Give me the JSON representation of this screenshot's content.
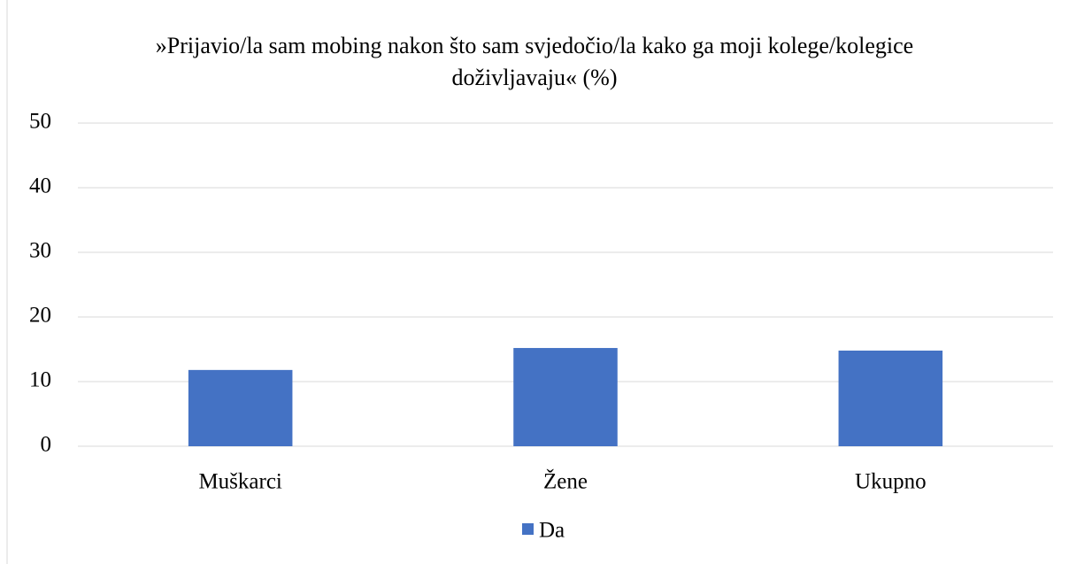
{
  "chart_data": {
    "type": "bar",
    "title": "»Prijavio/la sam mobing nakon što sam svjedočio/la kako ga moji kolege/kolegice doživljavaju« (%)",
    "categories": [
      "Muškarci",
      "Žene",
      "Ukupno"
    ],
    "series": [
      {
        "name": "Da",
        "color": "#4472c4",
        "values": [
          11.8,
          15.2,
          14.8
        ]
      }
    ],
    "ylim": [
      0,
      50
    ],
    "yticks": [
      0,
      10,
      20,
      30,
      40,
      50
    ],
    "grid": true,
    "legend": "bottom"
  }
}
